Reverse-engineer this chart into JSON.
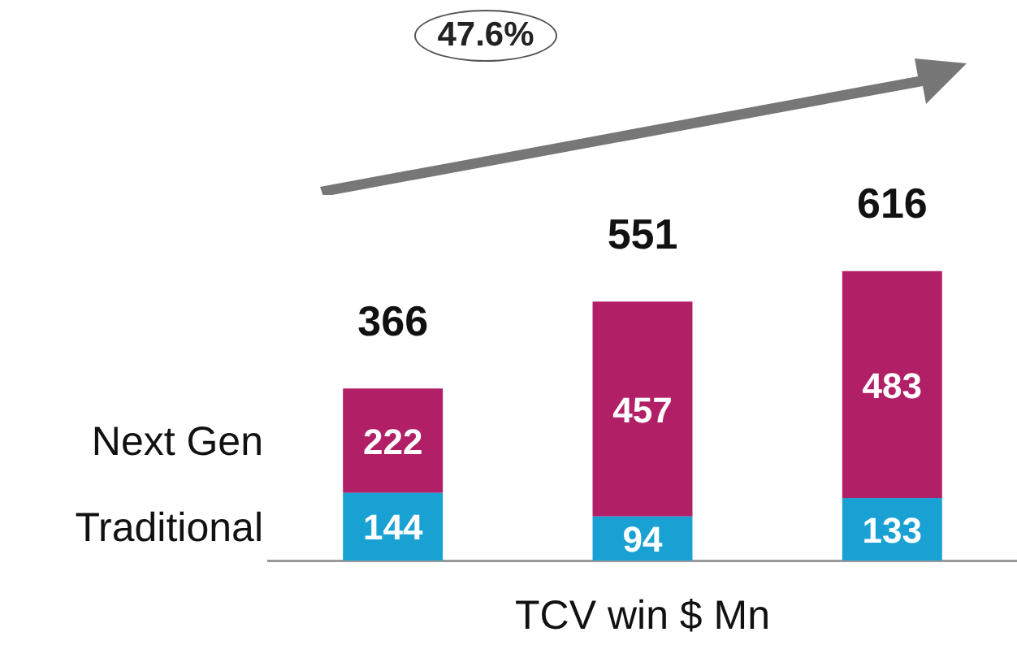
{
  "chart_data": {
    "type": "bar",
    "stacked": true,
    "xlabel": "TCV win $ Mn",
    "categories": [
      null,
      null,
      null
    ],
    "series": [
      {
        "name": "Traditional",
        "color": "#1aa1d3",
        "values": [
          144,
          94,
          133
        ]
      },
      {
        "name": "Next Gen",
        "color": "#b11f66",
        "values": [
          222,
          457,
          483
        ]
      }
    ],
    "data_labels": true,
    "totals": [
      "366",
      "551",
      "616"
    ],
    "legend": "left",
    "annotations": [
      "47.6%"
    ]
  }
}
